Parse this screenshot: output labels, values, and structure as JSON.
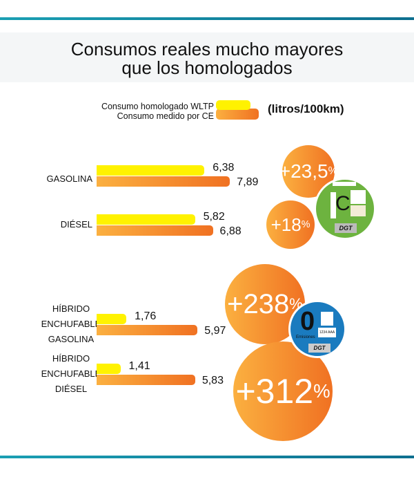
{
  "title": [
    "Consumos reales mucho mayores",
    "que los homologados"
  ],
  "legend": {
    "wltp": "Consumo homologado WLTP",
    "ce": "Consumo medido por CE",
    "unit": "(litros/100km)"
  },
  "colors": {
    "wltp": "#fff200",
    "ce_start": "#fbb040",
    "ce_end": "#f07122",
    "rule": "#1a9fb3",
    "label_c": "#6db33f",
    "label_0": "#1a7bbf"
  },
  "chart_data": {
    "type": "bar",
    "orientation": "horizontal",
    "categories": [
      [
        "GASOLINA"
      ],
      [
        "DIÉSEL"
      ],
      [
        "HÍBRIDO",
        "ENCHUFABLE",
        "GASOLINA"
      ],
      [
        "HÍBRIDO",
        "ENCHUFABLE",
        "DIÉSEL"
      ]
    ],
    "series": [
      {
        "name": "Consumo homologado WLTP",
        "values": [
          6.38,
          5.82,
          1.76,
          1.41
        ],
        "labels": [
          "6,38",
          "5,82",
          "1,76",
          "1,41"
        ]
      },
      {
        "name": "Consumo medido por CE",
        "values": [
          7.89,
          6.88,
          5.97,
          5.83
        ],
        "labels": [
          "7,89",
          "6,88",
          "5,97",
          "5,83"
        ]
      }
    ],
    "differences": [
      {
        "num": "+23,5",
        "pct": "%"
      },
      {
        "num": "+18",
        "pct": "%"
      },
      {
        "num": "+238",
        "pct": "%"
      },
      {
        "num": "+312",
        "pct": "%"
      }
    ],
    "ylabel": "(litros/100km)"
  },
  "stickers": {
    "c": {
      "letter": "C",
      "brand": "DGT"
    },
    "zero": {
      "letter": "0",
      "sub": "Emisiones",
      "plate": "1234 AAA",
      "brand": "DGT"
    }
  }
}
